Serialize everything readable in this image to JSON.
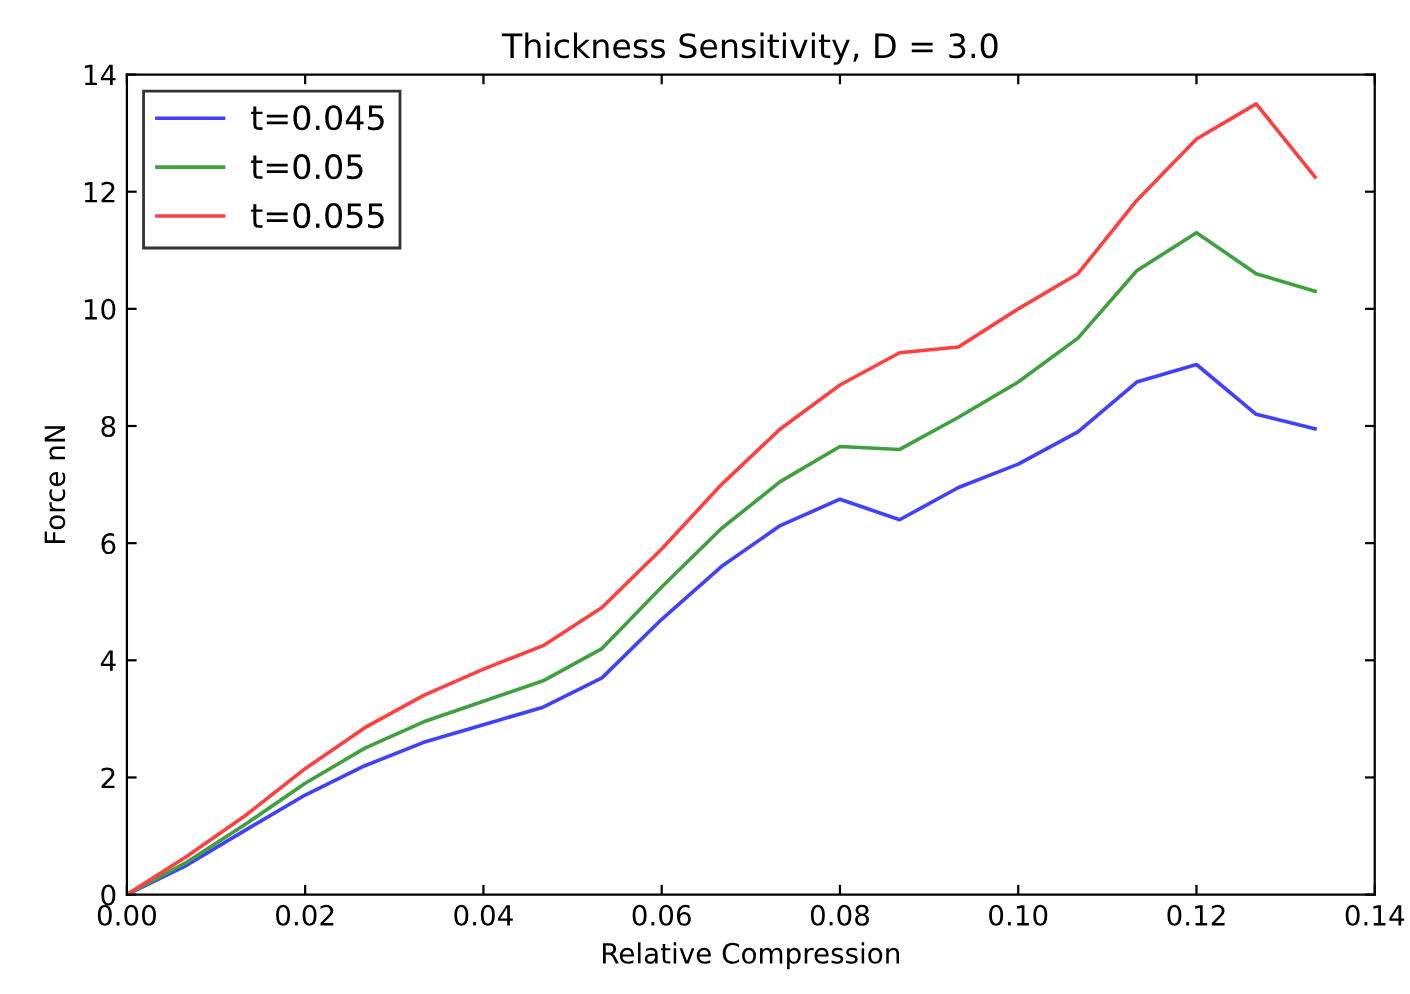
{
  "chart_data": {
    "type": "line",
    "title": "Thickness Sensitivity, D = 3.0",
    "xlabel": "Relative Compression",
    "ylabel": "Force nN",
    "x": [
      0,
      0.0067,
      0.0133,
      0.02,
      0.0267,
      0.0333,
      0.04,
      0.0467,
      0.0533,
      0.06,
      0.0667,
      0.0733,
      0.08,
      0.0867,
      0.0933,
      0.1,
      0.1067,
      0.1133,
      0.12,
      0.1267,
      0.1333
    ],
    "series": [
      {
        "name": "t=0.045",
        "color": "#4040ff",
        "values": [
          0,
          0.5,
          1.1,
          1.7,
          2.2,
          2.6,
          2.9,
          3.2,
          3.7,
          4.7,
          5.6,
          6.3,
          6.75,
          6.4,
          6.95,
          7.35,
          7.9,
          8.75,
          9.05,
          8.2,
          7.95
        ]
      },
      {
        "name": "t=0.05",
        "color": "#40a040",
        "values": [
          0,
          0.55,
          1.2,
          1.9,
          2.5,
          2.95,
          3.3,
          3.65,
          4.2,
          5.25,
          6.25,
          7.05,
          7.65,
          7.6,
          8.15,
          8.75,
          9.5,
          10.65,
          11.3,
          10.6,
          10.3
        ]
      },
      {
        "name": "t=0.055",
        "color": "#ff4040",
        "values": [
          0,
          0.65,
          1.35,
          2.15,
          2.85,
          3.4,
          3.85,
          4.25,
          4.9,
          5.9,
          7.0,
          7.95,
          8.7,
          9.25,
          9.35,
          10.0,
          10.6,
          11.85,
          12.9,
          13.5,
          12.25
        ]
      }
    ],
    "xlim": [
      0,
      0.14
    ],
    "xticks": [
      {
        "value": 0,
        "label": "0.00"
      },
      {
        "value": 0.02,
        "label": "0.02"
      },
      {
        "value": 0.04,
        "label": "0.04"
      },
      {
        "value": 0.06,
        "label": "0.06"
      },
      {
        "value": 0.08,
        "label": "0.08"
      },
      {
        "value": 0.1,
        "label": "0.10"
      },
      {
        "value": 0.12,
        "label": "0.12"
      },
      {
        "value": 0.14,
        "label": "0.14"
      }
    ],
    "ylim": [
      0,
      14
    ],
    "yticks": [
      0,
      2,
      4,
      6,
      8,
      10,
      12,
      14
    ],
    "legend": "top left",
    "grid": false,
    "line_style": "solid",
    "marker": "none"
  }
}
